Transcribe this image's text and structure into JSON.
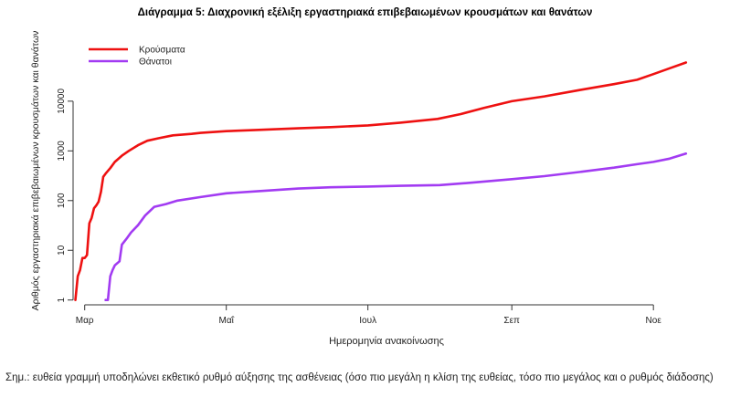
{
  "title": "Διάγραμμα 5: Διαχρονική εξέλιξη εργαστηριακά επιβεβαιωμένων κρουσμάτων και θανάτων",
  "note": "Σημ.: ευθεία γραμμή υποδηλώνει εκθετικό ρυθμό αύξησης της ασθένειας (όσο πιο μεγάλη η κλίση της ευθείας, τόσο πιο μεγάλος και ο ρυθμός διάδοσης)",
  "chart_data": {
    "type": "line",
    "title": "Διάγραμμα 5: Διαχρονική εξέλιξη εργαστηριακά επιβεβαιωμένων κρουσμάτων και θανάτων",
    "xlabel": "Ημερομηνία ανακοίνωσης",
    "ylabel": "Αριθμός εργαστηριακά επιβεβαιωμένων κρουσμάτων και θανάτων",
    "x_ticks": [
      {
        "date": "2020-03-01",
        "label": "Μαρ"
      },
      {
        "date": "2020-05-01",
        "label": "Μαΐ"
      },
      {
        "date": "2020-07-01",
        "label": "Ιουλ"
      },
      {
        "date": "2020-09-01",
        "label": "Σεπ"
      },
      {
        "date": "2020-11-01",
        "label": "Νοε"
      }
    ],
    "xlim": [
      "2020-02-25",
      "2020-11-21"
    ],
    "y_scale": "log",
    "y_ticks": [
      1,
      10,
      100,
      1000,
      10000
    ],
    "ylim": [
      0.8,
      200000
    ],
    "grid": false,
    "legend_position": "top-left",
    "series": [
      {
        "name": "Κρούσματα",
        "color": "#ee1111",
        "points": [
          [
            "2020-02-26",
            1
          ],
          [
            "2020-02-27",
            3
          ],
          [
            "2020-02-28",
            4
          ],
          [
            "2020-02-29",
            7
          ],
          [
            "2020-03-01",
            7
          ],
          [
            "2020-03-02",
            8
          ],
          [
            "2020-03-03",
            35
          ],
          [
            "2020-03-04",
            45
          ],
          [
            "2020-03-05",
            70
          ],
          [
            "2020-03-06",
            80
          ],
          [
            "2020-03-07",
            95
          ],
          [
            "2020-03-08",
            150
          ],
          [
            "2020-03-09",
            300
          ],
          [
            "2020-03-10",
            350
          ],
          [
            "2020-03-12",
            450
          ],
          [
            "2020-03-14",
            600
          ],
          [
            "2020-03-17",
            800
          ],
          [
            "2020-03-20",
            1000
          ],
          [
            "2020-03-24",
            1300
          ],
          [
            "2020-03-28",
            1600
          ],
          [
            "2020-04-02",
            1800
          ],
          [
            "2020-04-08",
            2050
          ],
          [
            "2020-04-16",
            2200
          ],
          [
            "2020-04-20",
            2300
          ],
          [
            "2020-05-01",
            2500
          ],
          [
            "2020-05-15",
            2650
          ],
          [
            "2020-06-01",
            2850
          ],
          [
            "2020-06-15",
            3000
          ],
          [
            "2020-07-01",
            3250
          ],
          [
            "2020-07-15",
            3700
          ],
          [
            "2020-07-31",
            4400
          ],
          [
            "2020-08-10",
            5500
          ],
          [
            "2020-08-20",
            7300
          ],
          [
            "2020-09-01",
            10000
          ],
          [
            "2020-09-15",
            12500
          ],
          [
            "2020-10-01",
            17000
          ],
          [
            "2020-10-15",
            22000
          ],
          [
            "2020-10-25",
            27000
          ],
          [
            "2020-11-01",
            35000
          ],
          [
            "2020-11-08",
            46000
          ],
          [
            "2020-11-15",
            60000
          ]
        ]
      },
      {
        "name": "Θάνατοι",
        "color": "#a23bf2",
        "points": [
          [
            "2020-03-10",
            1
          ],
          [
            "2020-03-11",
            1
          ],
          [
            "2020-03-12",
            3
          ],
          [
            "2020-03-13",
            4
          ],
          [
            "2020-03-14",
            5
          ],
          [
            "2020-03-16",
            6
          ],
          [
            "2020-03-17",
            13
          ],
          [
            "2020-03-19",
            17
          ],
          [
            "2020-03-21",
            23
          ],
          [
            "2020-03-24",
            32
          ],
          [
            "2020-03-27",
            50
          ],
          [
            "2020-03-31",
            75
          ],
          [
            "2020-04-05",
            85
          ],
          [
            "2020-04-10",
            100
          ],
          [
            "2020-04-20",
            118
          ],
          [
            "2020-05-01",
            140
          ],
          [
            "2020-05-15",
            155
          ],
          [
            "2020-06-01",
            175
          ],
          [
            "2020-06-15",
            185
          ],
          [
            "2020-07-01",
            192
          ],
          [
            "2020-07-15",
            198
          ],
          [
            "2020-08-01",
            205
          ],
          [
            "2020-08-15",
            230
          ],
          [
            "2020-09-01",
            270
          ],
          [
            "2020-09-15",
            310
          ],
          [
            "2020-10-01",
            380
          ],
          [
            "2020-10-15",
            460
          ],
          [
            "2020-10-25",
            540
          ],
          [
            "2020-11-01",
            600
          ],
          [
            "2020-11-08",
            700
          ],
          [
            "2020-11-15",
            880
          ]
        ]
      }
    ]
  }
}
